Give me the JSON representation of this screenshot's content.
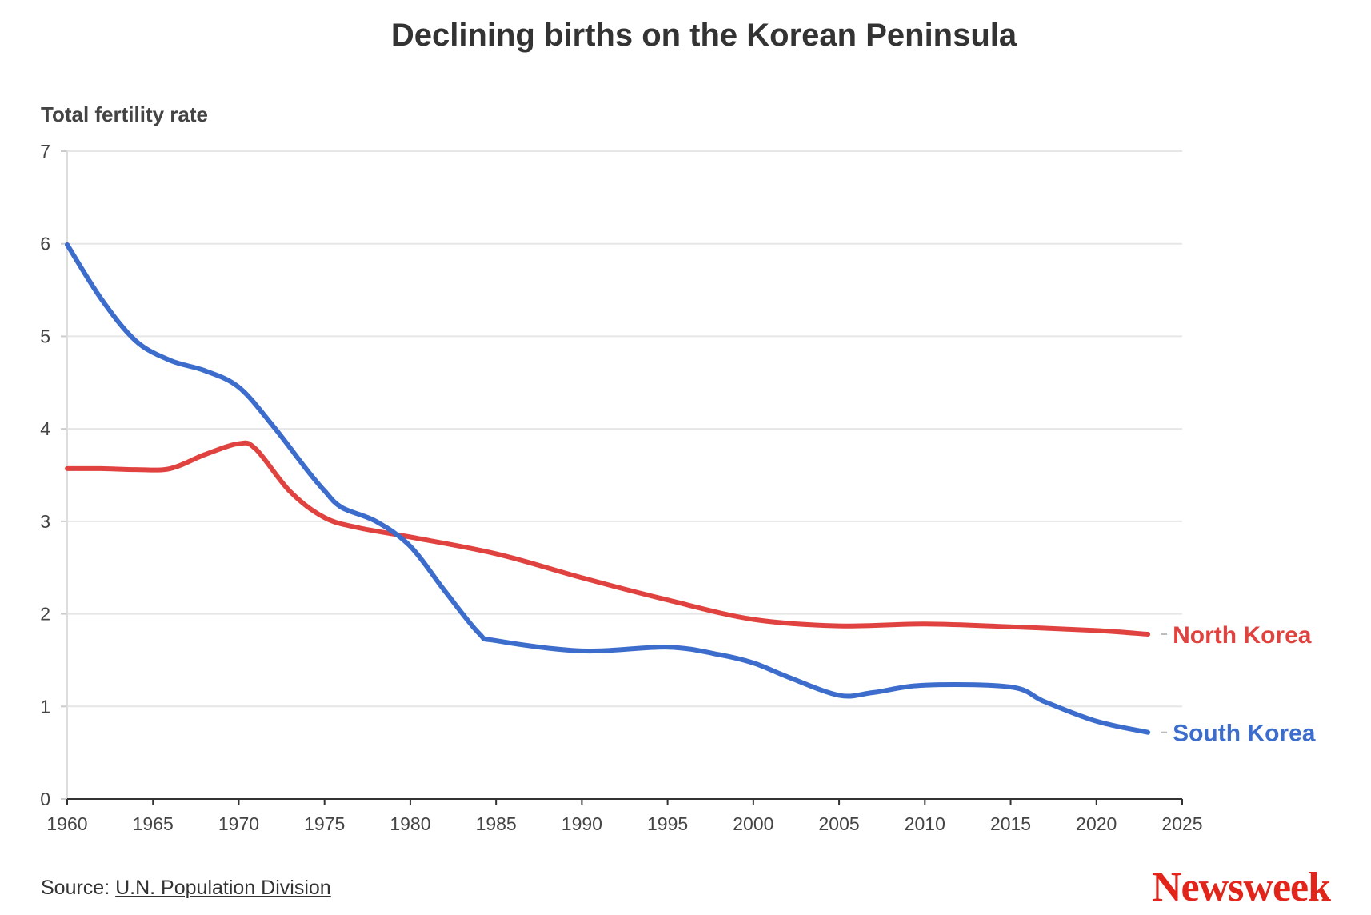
{
  "title": "Declining births on the Korean Peninsula",
  "source": {
    "prefix": "Source: ",
    "link_text": "U.N. Population Division"
  },
  "logo": "Newsweek",
  "chart_data": {
    "type": "line",
    "title": "Declining births on the Korean Peninsula",
    "xlabel": "",
    "ylabel": "Total fertility rate",
    "xlim": [
      1960,
      2025
    ],
    "ylim": [
      0,
      7
    ],
    "x_ticks": [
      1960,
      1965,
      1970,
      1975,
      1980,
      1985,
      1990,
      1995,
      2000,
      2005,
      2010,
      2015,
      2020,
      2025
    ],
    "y_ticks": [
      0,
      1,
      2,
      3,
      4,
      5,
      6,
      7
    ],
    "grid": "horizontal",
    "legend": "direct labels at line ends (right)",
    "series": [
      {
        "name": "North Korea",
        "color": "#e0433f",
        "x": [
          1960,
          1962,
          1964,
          1966,
          1968,
          1970,
          1971,
          1973,
          1975,
          1977,
          1980,
          1985,
          1990,
          1995,
          2000,
          2005,
          2010,
          2015,
          2020,
          2023
        ],
        "y": [
          3.57,
          3.57,
          3.56,
          3.57,
          3.72,
          3.84,
          3.78,
          3.32,
          3.04,
          2.93,
          2.83,
          2.65,
          2.39,
          2.15,
          1.94,
          1.87,
          1.89,
          1.86,
          1.82,
          1.78
        ]
      },
      {
        "name": "South Korea",
        "color": "#3d6dcc",
        "x": [
          1960,
          1962,
          1964,
          1966,
          1968,
          1970,
          1972,
          1974,
          1975,
          1976,
          1978,
          1980,
          1982,
          1984,
          1985,
          1990,
          1995,
          1998,
          2000,
          2002,
          2005,
          2007,
          2010,
          2015,
          2017,
          2020,
          2023
        ],
        "y": [
          5.99,
          5.4,
          4.95,
          4.74,
          4.63,
          4.45,
          4.03,
          3.55,
          3.33,
          3.15,
          3.0,
          2.73,
          2.25,
          1.79,
          1.71,
          1.6,
          1.64,
          1.56,
          1.47,
          1.32,
          1.12,
          1.15,
          1.23,
          1.21,
          1.05,
          0.84,
          0.72
        ]
      }
    ]
  }
}
